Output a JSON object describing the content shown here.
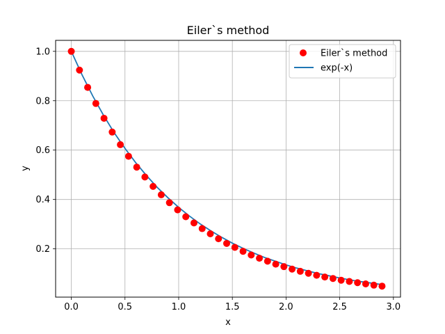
{
  "chart_data": {
    "type": "line",
    "title": "Eiler`s method",
    "xlabel": "x",
    "ylabel": "y",
    "xlim": [
      -0.146,
      3.066
    ],
    "ylim": [
      0.0045,
      1.0445
    ],
    "xticks": [
      0.0,
      0.5,
      1.0,
      1.5,
      2.0,
      2.5,
      3.0
    ],
    "xtick_labels": [
      "0.0",
      "0.5",
      "1.0",
      "1.5",
      "2.0",
      "2.5",
      "3.0"
    ],
    "yticks": [
      0.2,
      0.4,
      0.6,
      0.8,
      1.0
    ],
    "ytick_labels": [
      "0.2",
      "0.4",
      "0.6",
      "0.8",
      "1.0"
    ],
    "grid": true,
    "legend_position": "top-right",
    "series": [
      {
        "name": "Eiler`s method",
        "kind": "scatter",
        "color": "#ff0000",
        "x": [
          0.0,
          0.0762,
          0.1523,
          0.2285,
          0.3046,
          0.3808,
          0.457,
          0.5331,
          0.6093,
          0.6854,
          0.7616,
          0.8378,
          0.9139,
          0.9901,
          1.0662,
          1.1424,
          1.2186,
          1.2947,
          1.3709,
          1.447,
          1.5232,
          1.5994,
          1.6755,
          1.7517,
          1.8278,
          1.904,
          1.9802,
          2.0563,
          2.1325,
          2.2086,
          2.2848,
          2.361,
          2.4371,
          2.5133,
          2.5894,
          2.6656,
          2.7418,
          2.8179,
          2.8941
        ],
        "y": [
          1.0,
          0.924,
          0.854,
          0.789,
          0.729,
          0.673,
          0.622,
          0.575,
          0.531,
          0.491,
          0.453,
          0.419,
          0.387,
          0.358,
          0.33,
          0.305,
          0.282,
          0.261,
          0.241,
          0.222,
          0.206,
          0.19,
          0.175,
          0.162,
          0.15,
          0.138,
          0.128,
          0.118,
          0.109,
          0.101,
          0.093,
          0.086,
          0.08,
          0.073,
          0.068,
          0.063,
          0.058,
          0.053,
          0.049
        ]
      },
      {
        "name": "exp(-x)",
        "kind": "line",
        "color": "#1f77b4",
        "x": [
          0.0,
          0.1,
          0.2,
          0.3,
          0.4,
          0.5,
          0.6,
          0.7,
          0.8,
          0.9,
          1.0,
          1.1,
          1.2,
          1.3,
          1.4,
          1.5,
          1.6,
          1.7,
          1.8,
          1.9,
          2.0,
          2.1,
          2.2,
          2.3,
          2.4,
          2.5,
          2.6,
          2.7,
          2.8,
          2.9
        ],
        "y": [
          1.0,
          0.905,
          0.819,
          0.741,
          0.67,
          0.607,
          0.549,
          0.497,
          0.449,
          0.407,
          0.368,
          0.333,
          0.301,
          0.273,
          0.247,
          0.223,
          0.202,
          0.183,
          0.165,
          0.15,
          0.135,
          0.122,
          0.111,
          0.1,
          0.091,
          0.082,
          0.074,
          0.067,
          0.061,
          0.055
        ]
      }
    ]
  }
}
